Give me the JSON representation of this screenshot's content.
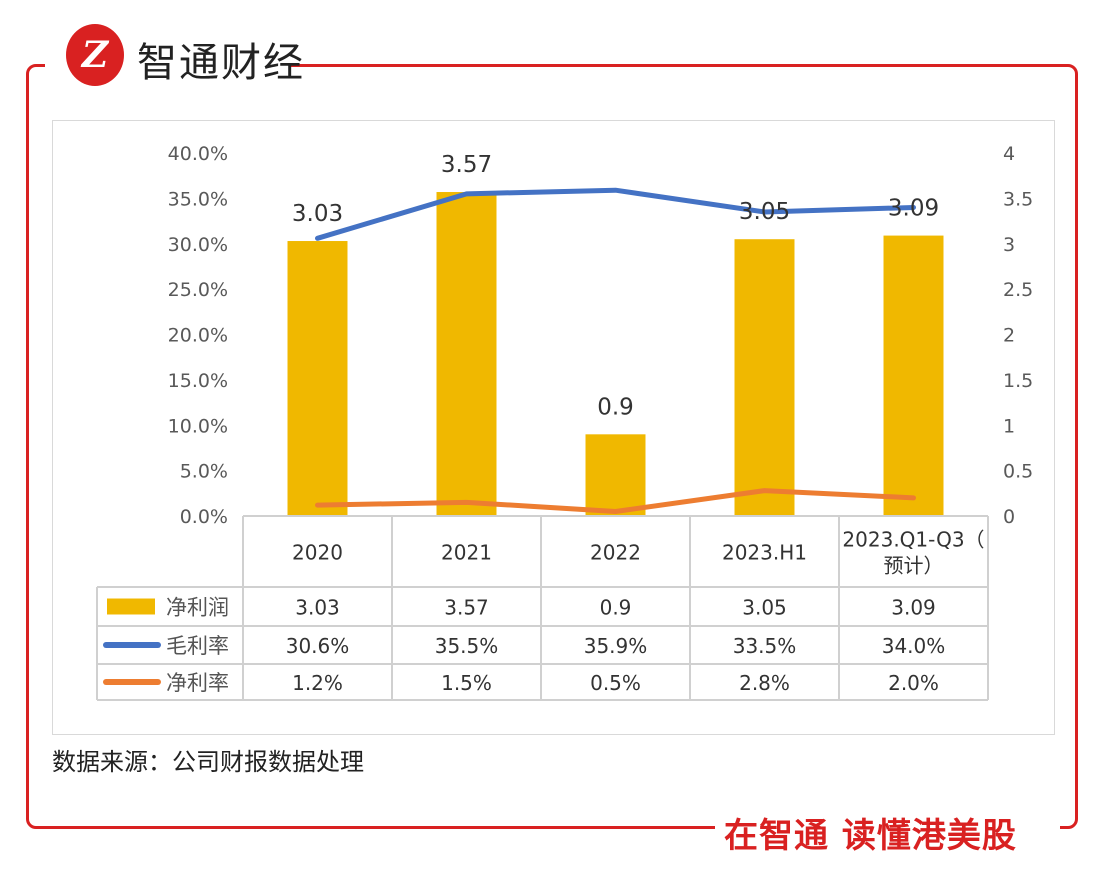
{
  "brand": {
    "logo_mark": "Z",
    "name": "智通财经",
    "slogan": "在智通 读懂港美股",
    "color": "#d92121"
  },
  "source": "数据来源：公司财报数据处理",
  "chart_data": {
    "type": "bar+line",
    "categories": [
      "2020",
      "2021",
      "2022",
      "2023.H1",
      "2023.Q1-Q3（预计）"
    ],
    "category_lines": [
      [
        "2020"
      ],
      [
        "2021"
      ],
      [
        "2022"
      ],
      [
        "2023.H1"
      ],
      [
        "2023.Q1-Q3（",
        "预计）"
      ]
    ],
    "left_axis": {
      "ylim": [
        0,
        0.4
      ],
      "ticks": [
        "0.0%",
        "5.0%",
        "10.0%",
        "15.0%",
        "20.0%",
        "25.0%",
        "30.0%",
        "35.0%",
        "40.0%"
      ]
    },
    "right_axis": {
      "ylim": [
        0,
        4
      ],
      "ticks": [
        "0",
        "0.5",
        "1",
        "1.5",
        "2",
        "2.5",
        "3",
        "3.5",
        "4"
      ]
    },
    "series": [
      {
        "name": "净利润",
        "type": "bar",
        "axis": "right",
        "color": "#f0b800",
        "values": [
          3.03,
          3.57,
          0.9,
          3.05,
          3.09
        ],
        "labels": [
          "3.03",
          "3.57",
          "0.9",
          "3.05",
          "3.09"
        ]
      },
      {
        "name": "毛利率",
        "type": "line",
        "axis": "left",
        "color": "#4472c4",
        "values": [
          0.306,
          0.355,
          0.359,
          0.335,
          0.34
        ],
        "labels": [
          "30.6%",
          "35.5%",
          "35.9%",
          "33.5%",
          "34.0%"
        ]
      },
      {
        "name": "净利率",
        "type": "line",
        "axis": "left",
        "color": "#ed7d31",
        "values": [
          0.012,
          0.015,
          0.005,
          0.028,
          0.02
        ],
        "labels": [
          "1.2%",
          "1.5%",
          "0.5%",
          "2.8%",
          "2.0%"
        ]
      }
    ],
    "legend": "data-table",
    "grid": false
  }
}
